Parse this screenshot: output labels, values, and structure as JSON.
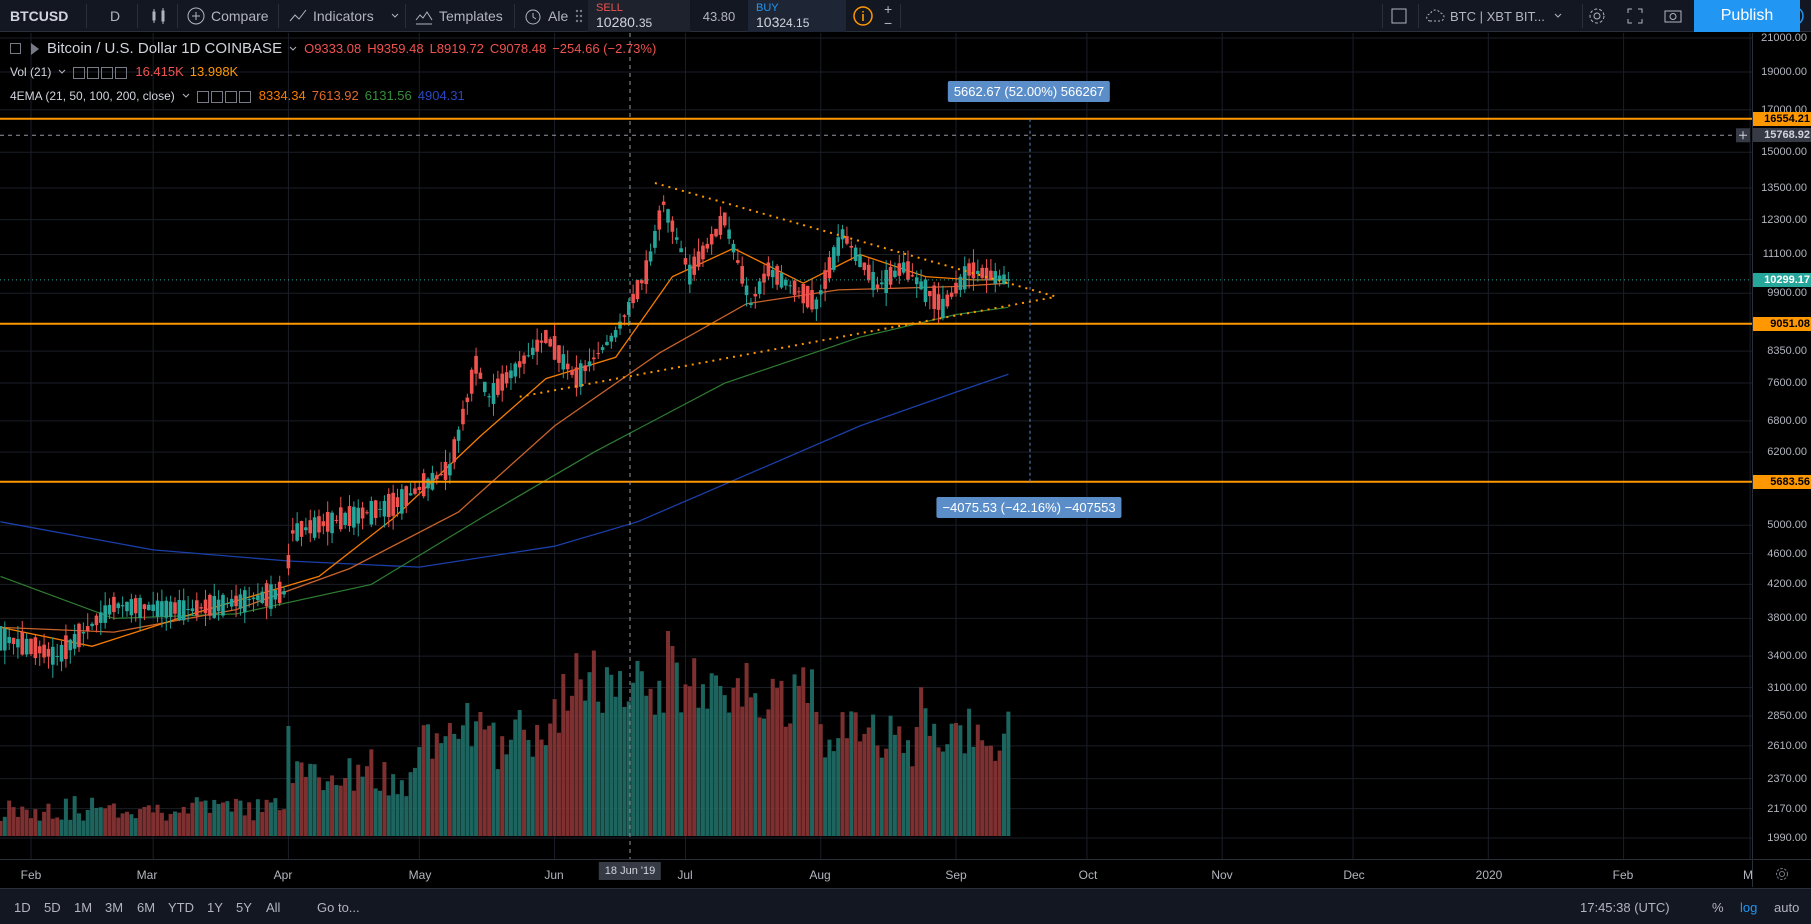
{
  "toolbar": {
    "symbol": "BTCUSD",
    "interval": "D",
    "compare_label": "Compare",
    "indicators_label": "Indicators",
    "templates_label": "Templates",
    "alerts_label": "Ale",
    "sell_label": "SELL",
    "sell_price_main": "10280.",
    "sell_price_tail": "35",
    "spread": "43.80",
    "buy_label": "BUY",
    "buy_price_main": "103",
    "buy_price_tail": "24.15",
    "broker_label": "BTC | XBT BIT...",
    "publish_label": "Publish"
  },
  "legend": {
    "title": "Bitcoin / U.S. Dollar  1D  COINBASE",
    "open": "O9333.08",
    "high": "H9359.48",
    "low": "L8919.72",
    "close": "C9078.48",
    "change": "−254.66 (−2.73%)",
    "vol_name": "Vol (21)",
    "vol_val1": "16.415K",
    "vol_val2": "13.998K",
    "ema_name": "4EMA (21, 50, 100, 200, close)",
    "ema_21": "8334.34",
    "ema_50": "7613.92",
    "ema_100": "6131.56",
    "ema_200": "4904.31"
  },
  "colors": {
    "ema_21": "#f57c00",
    "ema_50": "#c8632a",
    "ema_100": "#2e7d32",
    "ema_200": "#1a3fa8",
    "bull": "#26a69a",
    "bear": "#ef5350",
    "level": "#ff9800",
    "accent": "#2196f3"
  },
  "price_axis": {
    "labels": [
      "21000.00",
      "19000.00",
      "17000.00",
      "15000.00",
      "13500.00",
      "12300.00",
      "11100.00",
      "9900.00",
      "8350.00",
      "7600.00",
      "6800.00",
      "6200.00",
      "5000.00",
      "4600.00",
      "4200.00",
      "3800.00",
      "3400.00",
      "3100.00",
      "2850.00",
      "2610.00",
      "2370.00",
      "2170.00",
      "1990.00"
    ],
    "tags": {
      "level_top": "16554.21",
      "crosshair": "15768.92",
      "last": "10299.17",
      "level_mid": "9051.08",
      "level_low": "5683.56"
    }
  },
  "time_axis": {
    "labels": [
      "Feb",
      "Mar",
      "Apr",
      "May",
      "Jun",
      "Jul",
      "Aug",
      "Sep",
      "Oct",
      "Nov",
      "Dec",
      "2020",
      "Feb",
      "M"
    ],
    "crosshair_date": "18 Jun '19"
  },
  "measure": {
    "up": "5662.67 (52.00%) 566267",
    "down": "−4075.53 (−42.16%) −407553"
  },
  "bottom": {
    "ranges": [
      "1D",
      "5D",
      "1M",
      "3M",
      "6M",
      "YTD",
      "1Y",
      "5Y",
      "All"
    ],
    "goto_label": "Go to...",
    "clock": "17:45:38 (UTC)",
    "pct_label": "%",
    "log_label": "log",
    "auto_label": "auto"
  },
  "chart_data": {
    "type": "candlestick",
    "x_range": [
      "2019-01-25",
      "2020-03-01"
    ],
    "y_scale": "log",
    "ylim": [
      1990,
      21000
    ],
    "ema_21_y": [
      3600,
      3700,
      3900,
      4100,
      5200,
      5900,
      7800,
      9300,
      10800,
      10500,
      10400
    ],
    "ema_200_y": [
      5000,
      4500,
      4400,
      4600,
      5400,
      6200,
      7000,
      7700,
      8200
    ],
    "horizontal_levels": [
      16554.21,
      9051.08,
      5683.56
    ],
    "triangle_upper": [
      [
        "2019-06-24",
        13700
      ],
      [
        "2019-09-24",
        9800
      ]
    ],
    "triangle_lower": [
      [
        "2019-05-24",
        7300
      ],
      [
        "2019-09-24",
        9800
      ]
    ]
  }
}
